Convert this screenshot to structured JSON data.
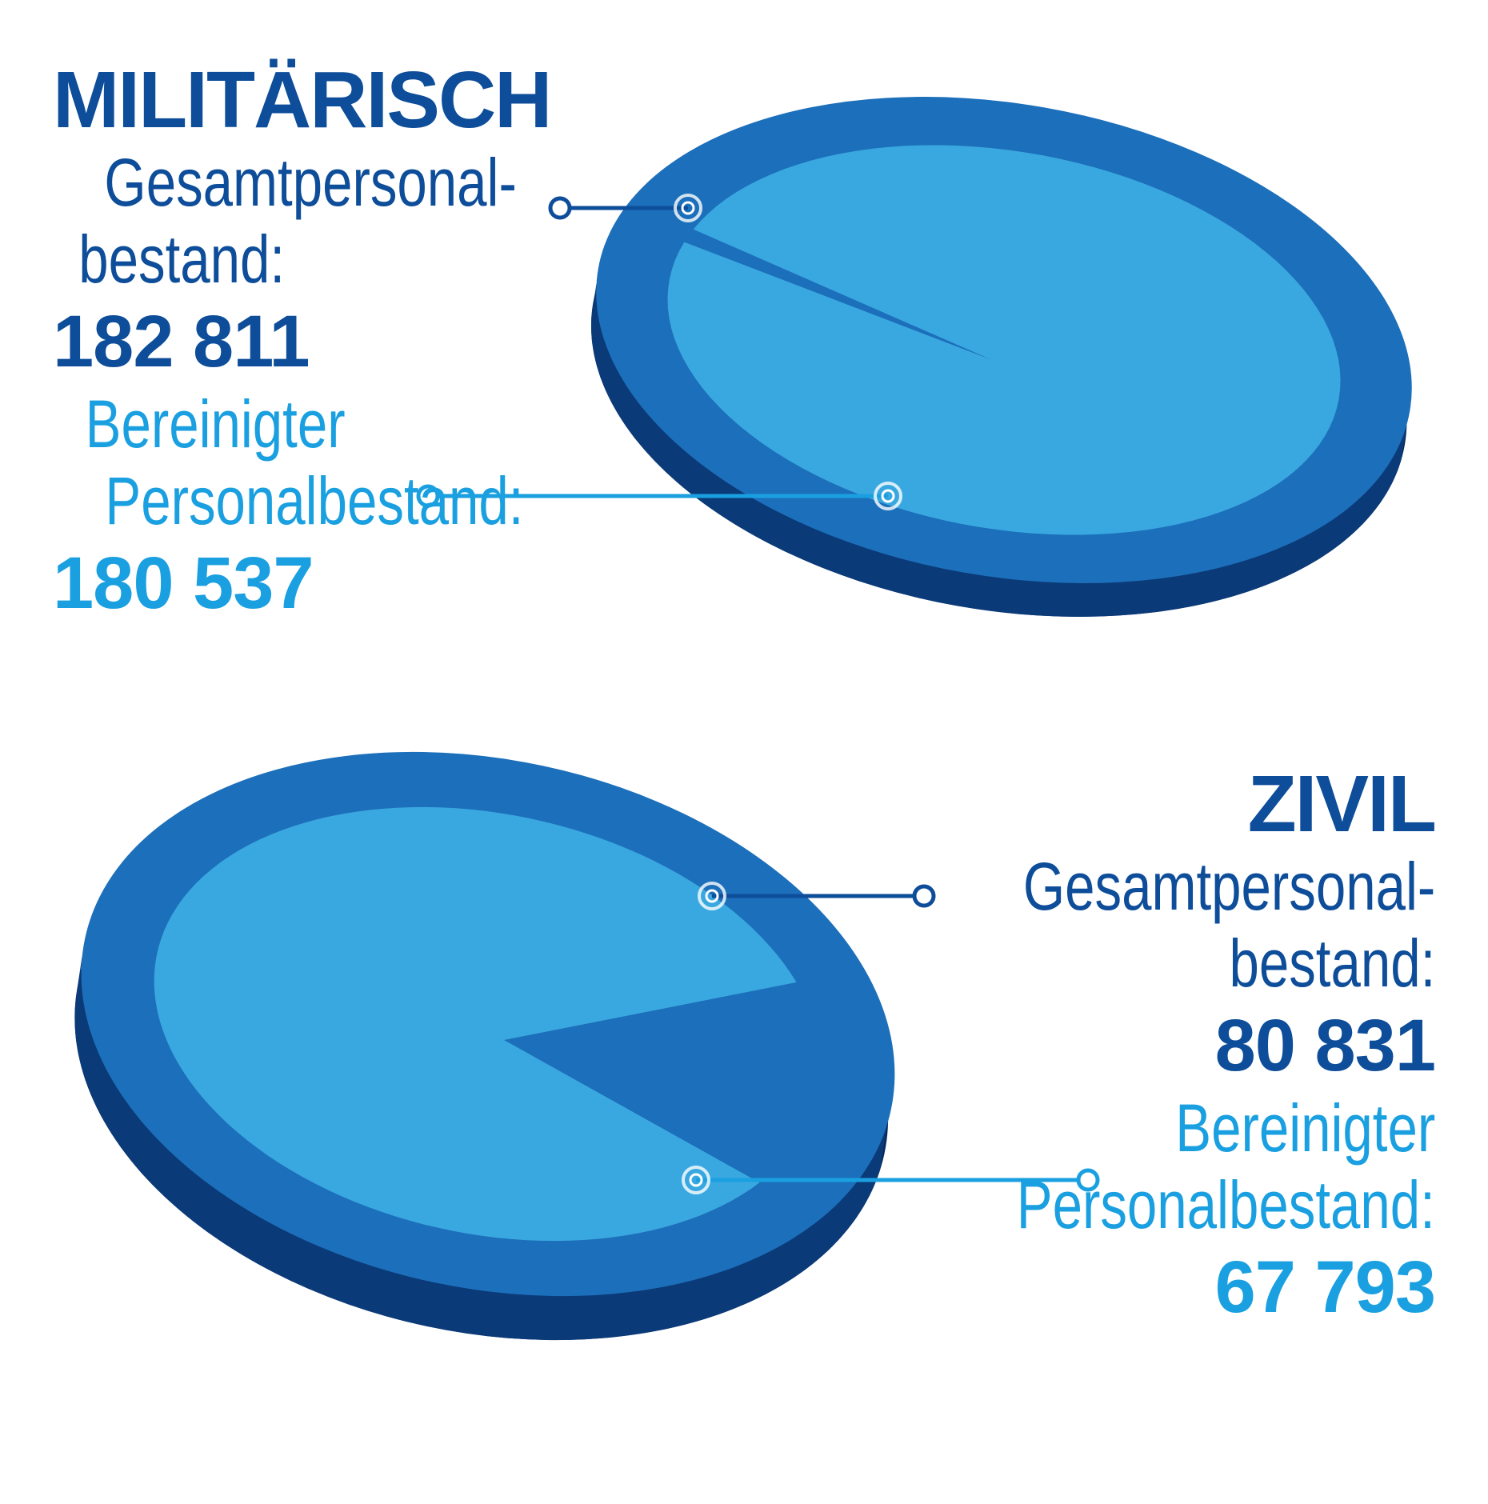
{
  "colors": {
    "dark_blue": "#0d4d99",
    "light_blue": "#1aa0e0",
    "rim": "#1c6fba",
    "face": "#3aa8e0",
    "side": "#0b3a78"
  },
  "chart_data": [
    {
      "type": "pie",
      "title": "MILITÄRISCH",
      "slices": [
        {
          "label": "Bereinigter Personalbestand",
          "value": 180537
        },
        {
          "label": "Gesamtpersonal-bestand",
          "value": 182811
        }
      ],
      "total": {
        "label": "Gesamtpersonal-\nbestand:",
        "value": 182811,
        "display": "182 811"
      },
      "adjusted": {
        "label": "Bereinigter\nPersonalbestand:",
        "value": 180537,
        "display": "180 537"
      }
    },
    {
      "type": "pie",
      "title": "ZIVIL",
      "slices": [
        {
          "label": "Bereinigter Personalbestand",
          "value": 67793
        },
        {
          "label": "Gesamtpersonal-bestand",
          "value": 80831
        }
      ],
      "total": {
        "label": "Gesamtpersonal-\nbestand:",
        "value": 80831,
        "display": "80 831"
      },
      "adjusted": {
        "label": "Bereinigter\nPersonalbestand:",
        "value": 67793,
        "display": "67 793"
      }
    }
  ],
  "text": {
    "mil_title": "MILITÄRISCH",
    "mil_total_line1": "Gesamtpersonal-",
    "mil_total_line2": "bestand:",
    "mil_total_value": "182 811",
    "mil_adj_line1": "Bereinigter",
    "mil_adj_line2": "Personalbestand:",
    "mil_adj_value": "180 537",
    "ziv_title": "ZIVIL",
    "ziv_total_line1": "Gesamtpersonal-",
    "ziv_total_line2": "bestand:",
    "ziv_total_value": "80 831",
    "ziv_adj_line1": "Bereinigter",
    "ziv_adj_line2": "Personalbestand:",
    "ziv_adj_value": "67 793"
  }
}
